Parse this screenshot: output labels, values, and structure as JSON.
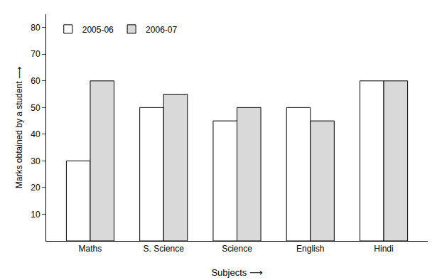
{
  "chart_data": {
    "type": "bar",
    "x_label": "Subjects ⟶",
    "y_label": "Marks obtained by a student ⟶",
    "categories": [
      "Maths",
      "S. Science",
      "Science",
      "English",
      "Hindi"
    ],
    "series": [
      {
        "name": "2005-06",
        "color": "#ffffff",
        "values": [
          30,
          50,
          45,
          50,
          60
        ]
      },
      {
        "name": "2006-07",
        "color": "#d9d9d9",
        "values": [
          60,
          55,
          50,
          45,
          60
        ]
      }
    ],
    "ylim": [
      0,
      85
    ],
    "yticks": [
      10,
      20,
      30,
      40,
      50,
      60,
      70,
      80
    ],
    "grid": false,
    "legend": "top left"
  }
}
